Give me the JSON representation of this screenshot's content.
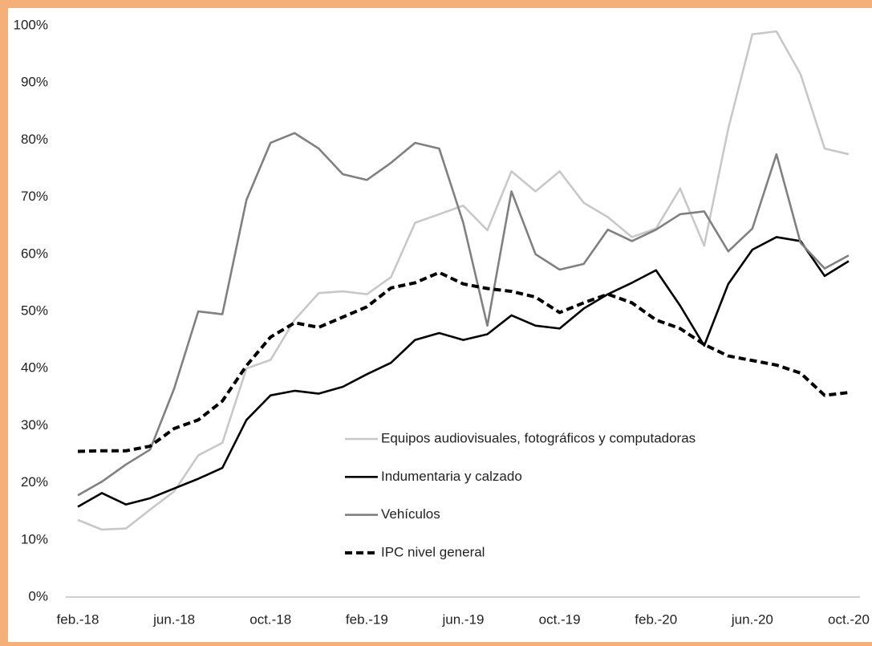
{
  "chart_data": {
    "type": "line",
    "categories": [
      "feb.-18",
      null,
      null,
      null,
      "jun.-18",
      null,
      null,
      null,
      "oct.-18",
      null,
      null,
      null,
      "feb.-19",
      null,
      null,
      null,
      "jun.-19",
      null,
      null,
      null,
      "oct.-19",
      null,
      null,
      null,
      "feb.-20",
      null,
      null,
      null,
      "jun.-20",
      null,
      null,
      null,
      "oct.-20"
    ],
    "series": [
      {
        "name": "Equipos audiovisuales, fotográficos y computadoras",
        "color": "#c8c8c8",
        "dashed": false,
        "values": [
          13.5,
          11.8,
          12.0,
          15.3,
          18.5,
          24.8,
          27,
          40,
          41.5,
          48.5,
          53.2,
          53.5,
          53,
          56,
          65.5,
          67,
          68.5,
          64.2,
          74.5,
          71,
          74.5,
          69,
          66.5,
          63,
          64.5,
          71.5,
          61.5,
          82,
          98.5,
          99,
          91.5,
          78.5,
          77.5
        ]
      },
      {
        "name": "Indumentaria y calzado",
        "color": "#000000",
        "dashed": false,
        "values": [
          15.8,
          18.2,
          16.2,
          17.3,
          19,
          20.7,
          22.6,
          31,
          35.3,
          36.1,
          35.6,
          36.8,
          39,
          41,
          45,
          46.2,
          45,
          46,
          49.3,
          47.5,
          47,
          50.5,
          53,
          55,
          57.2,
          51,
          44,
          54.8,
          60.8,
          63,
          62.3,
          56.2,
          58.8
        ]
      },
      {
        "name": "Vehículos",
        "color": "#808080",
        "dashed": false,
        "values": [
          17.8,
          20.2,
          23.2,
          25.8,
          36.5,
          50,
          49.5,
          69.5,
          79.5,
          81.2,
          78.5,
          74,
          73,
          76,
          79.5,
          78.5,
          65.5,
          47.5,
          71,
          60,
          57.3,
          58.3,
          64.3,
          62.3,
          64.3,
          67,
          67.5,
          60.5,
          64.5,
          77.5,
          62,
          57.5,
          59.8
        ]
      },
      {
        "name": "IPC nivel general",
        "color": "#000000",
        "dashed": true,
        "values": [
          25.5,
          25.6,
          25.6,
          26.4,
          29.5,
          31,
          34.3,
          40.5,
          45.5,
          48,
          47.2,
          49,
          50.8,
          54.1,
          55,
          56.8,
          54.8,
          54,
          53.5,
          52.5,
          49.8,
          51.5,
          53,
          51.5,
          48.5,
          47,
          44.2,
          42.2,
          41.4,
          40.6,
          39.2,
          35.3,
          35.8
        ]
      }
    ],
    "ylim": [
      0,
      100
    ],
    "yticks": [
      {
        "value": 0,
        "label": "0%"
      },
      {
        "value": 10,
        "label": "10%"
      },
      {
        "value": 20,
        "label": "20%"
      },
      {
        "value": 30,
        "label": "30%"
      },
      {
        "value": 40,
        "label": "40%"
      },
      {
        "value": 50,
        "label": "50%"
      },
      {
        "value": 60,
        "label": "60%"
      },
      {
        "value": 70,
        "label": "70%"
      },
      {
        "value": 80,
        "label": "80%"
      },
      {
        "value": 90,
        "label": "90%"
      },
      {
        "value": 100,
        "label": "100%"
      }
    ],
    "grid": false
  }
}
